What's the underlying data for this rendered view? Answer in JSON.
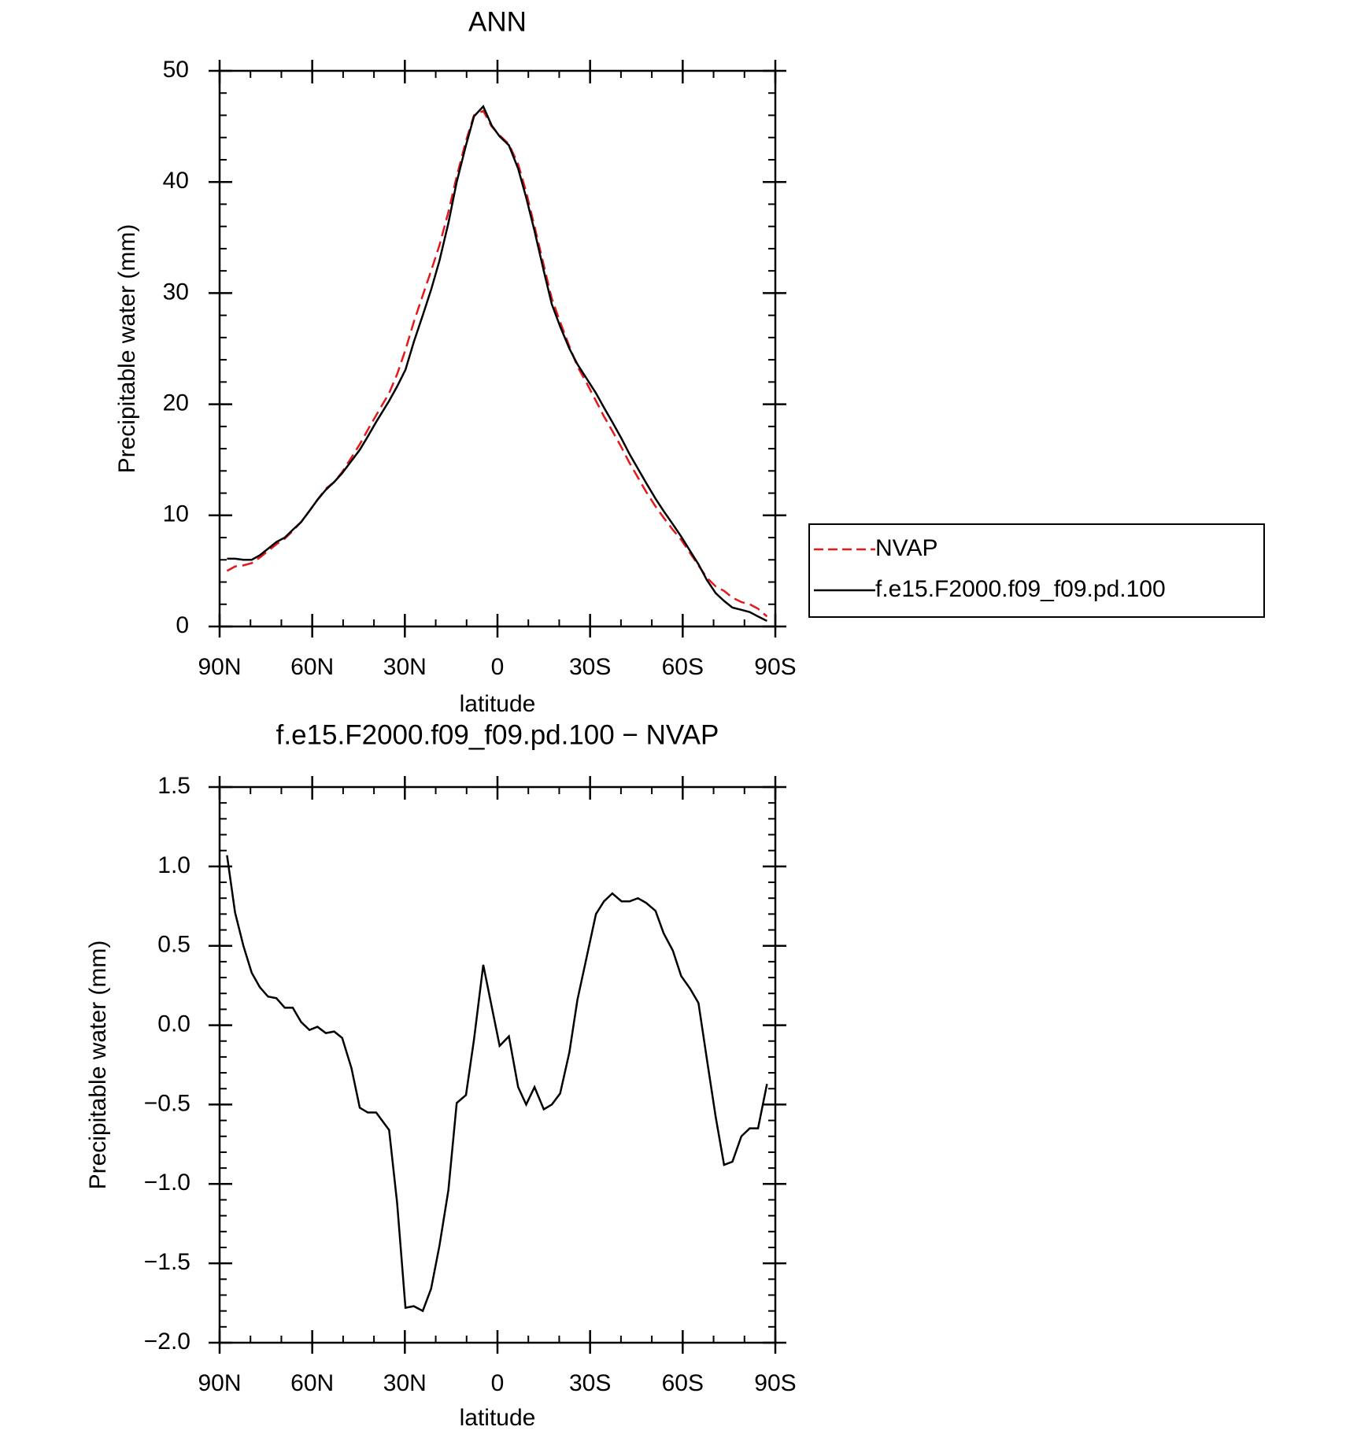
{
  "chart_data": [
    {
      "type": "line",
      "title": "ANN",
      "xlabel": "latitude",
      "ylabel": "Precipitable water (mm)",
      "x": [
        87.6,
        85.0,
        82.3,
        79.6,
        77.0,
        74.3,
        71.6,
        68.9,
        66.3,
        63.6,
        60.9,
        58.3,
        55.6,
        52.9,
        50.3,
        47.3,
        44.6,
        42.0,
        39.3,
        35.1,
        32.5,
        29.8,
        27.1,
        24.2,
        21.5,
        18.8,
        15.9,
        13.2,
        10.2,
        7.6,
        4.6,
        1.9,
        -0.7,
        -3.7,
        -6.7,
        -9.3,
        -12.0,
        -15.0,
        -17.6,
        -20.3,
        -23.3,
        -25.9,
        -28.9,
        -31.9,
        -34.5,
        -37.2,
        -40.2,
        -42.8,
        -45.5,
        -48.2,
        -51.2,
        -53.8,
        -56.8,
        -59.5,
        -62.4,
        -65.1,
        -67.8,
        -70.7,
        -73.4,
        -76.1,
        -79.0,
        -81.7,
        -84.4,
        -87.3
      ],
      "series": [
        {
          "name": "NVAP",
          "color": "#e31a1c",
          "line_style": "dashed",
          "values": [
            5.0,
            5.4,
            5.5,
            5.7,
            6.2,
            6.8,
            7.4,
            7.9,
            8.6,
            9.4,
            10.4,
            11.4,
            12.4,
            13.0,
            13.9,
            15.2,
            16.4,
            17.7,
            19.0,
            21.0,
            22.7,
            24.9,
            27.4,
            29.8,
            32.0,
            34.3,
            37.3,
            40.5,
            43.7,
            46.0,
            46.4,
            45.0,
            44.2,
            43.4,
            41.6,
            39.1,
            36.0,
            32.5,
            29.5,
            27.4,
            25.2,
            23.4,
            21.9,
            20.3,
            18.9,
            17.6,
            16.1,
            14.7,
            13.4,
            12.1,
            10.8,
            9.8,
            8.7,
            7.8,
            6.6,
            5.5,
            4.4,
            3.6,
            3.2,
            2.6,
            2.2,
            2.0,
            1.6,
            0.9
          ]
        },
        {
          "name": "f.e15.F2000.f09_f09.pd.100",
          "color": "#000000",
          "line_style": "solid",
          "values": [
            6.1,
            6.1,
            6.0,
            6.0,
            6.4,
            7.0,
            7.6,
            8.0,
            8.7,
            9.4,
            10.4,
            11.4,
            12.3,
            13.0,
            13.8,
            14.9,
            15.9,
            17.1,
            18.4,
            20.3,
            21.6,
            23.1,
            25.6,
            28.0,
            30.3,
            32.9,
            36.3,
            40.0,
            43.3,
            45.9,
            46.8,
            45.1,
            44.1,
            43.3,
            41.2,
            38.6,
            35.6,
            32.0,
            29.0,
            27.0,
            25.0,
            23.6,
            22.3,
            21.0,
            19.7,
            18.4,
            16.9,
            15.5,
            14.2,
            12.9,
            11.5,
            10.4,
            9.2,
            8.1,
            6.8,
            5.6,
            4.2,
            3.0,
            2.3,
            1.7,
            1.5,
            1.3,
            0.9,
            0.5
          ]
        }
      ],
      "xlim": [
        90,
        -90
      ],
      "xticks": [
        {
          "value": 90,
          "label": "90N"
        },
        {
          "value": 60,
          "label": "60N"
        },
        {
          "value": 30,
          "label": "30N"
        },
        0,
        {
          "value": -30,
          "label": "30S"
        },
        {
          "value": -60,
          "label": "60S"
        },
        {
          "value": -90,
          "label": "90S"
        }
      ],
      "ylim": [
        0,
        50
      ],
      "yticks": [
        0,
        10,
        20,
        30,
        40,
        50
      ],
      "legend": "right"
    },
    {
      "type": "line",
      "title": "f.e15.F2000.f09_f09.pd.100 − NVAP",
      "xlabel": "latitude",
      "ylabel": "Precipitable water (mm)",
      "x": [
        87.6,
        85.0,
        82.3,
        79.6,
        77.0,
        74.3,
        71.6,
        68.9,
        66.3,
        63.6,
        60.9,
        58.3,
        55.6,
        52.9,
        50.3,
        47.3,
        44.6,
        42.0,
        39.3,
        35.1,
        32.5,
        29.8,
        27.1,
        24.2,
        21.5,
        18.8,
        15.9,
        13.2,
        10.2,
        7.6,
        4.6,
        1.9,
        -0.7,
        -3.7,
        -6.7,
        -9.3,
        -12.0,
        -15.0,
        -17.6,
        -20.3,
        -23.3,
        -25.9,
        -28.9,
        -31.9,
        -34.5,
        -37.2,
        -40.2,
        -42.8,
        -45.5,
        -48.2,
        -51.2,
        -53.8,
        -56.8,
        -59.5,
        -62.4,
        -65.1,
        -67.8,
        -70.7,
        -73.4,
        -76.1,
        -79.0,
        -81.7,
        -84.4,
        -87.3
      ],
      "values": [
        1.07,
        0.71,
        0.5,
        0.33,
        0.24,
        0.18,
        0.17,
        0.11,
        0.11,
        0.02,
        -0.03,
        -0.01,
        -0.05,
        -0.04,
        -0.08,
        -0.27,
        -0.52,
        -0.55,
        -0.55,
        -0.66,
        -1.12,
        -1.78,
        -1.77,
        -1.8,
        -1.66,
        -1.39,
        -1.04,
        -0.49,
        -0.44,
        -0.09,
        0.38,
        0.12,
        -0.13,
        -0.07,
        -0.39,
        -0.5,
        -0.39,
        -0.53,
        -0.5,
        -0.43,
        -0.17,
        0.16,
        0.43,
        0.7,
        0.78,
        0.83,
        0.78,
        0.78,
        0.8,
        0.77,
        0.72,
        0.58,
        0.47,
        0.31,
        0.23,
        0.14,
        -0.21,
        -0.58,
        -0.88,
        -0.86,
        -0.7,
        -0.65,
        -0.65,
        -0.37
      ],
      "color": "#000000",
      "xlim": [
        90,
        -90
      ],
      "xticks": [
        {
          "value": 90,
          "label": "90N"
        },
        {
          "value": 60,
          "label": "60N"
        },
        {
          "value": 30,
          "label": "30N"
        },
        0,
        {
          "value": -30,
          "label": "30S"
        },
        {
          "value": -60,
          "label": "60S"
        },
        {
          "value": -90,
          "label": "90S"
        }
      ],
      "ylim": [
        -2.0,
        1.5
      ],
      "yticks": [
        {
          "value": -2.0,
          "label": "−2.0"
        },
        {
          "value": -1.5,
          "label": "−1.5"
        },
        {
          "value": -1.0,
          "label": "−1.0"
        },
        {
          "value": -0.5,
          "label": "−0.5"
        },
        {
          "value": 0.0,
          "label": "0.0"
        },
        {
          "value": 0.5,
          "label": "0.5"
        },
        {
          "value": 1.0,
          "label": "1.0"
        },
        {
          "value": 1.5,
          "label": "1.5"
        }
      ]
    }
  ]
}
